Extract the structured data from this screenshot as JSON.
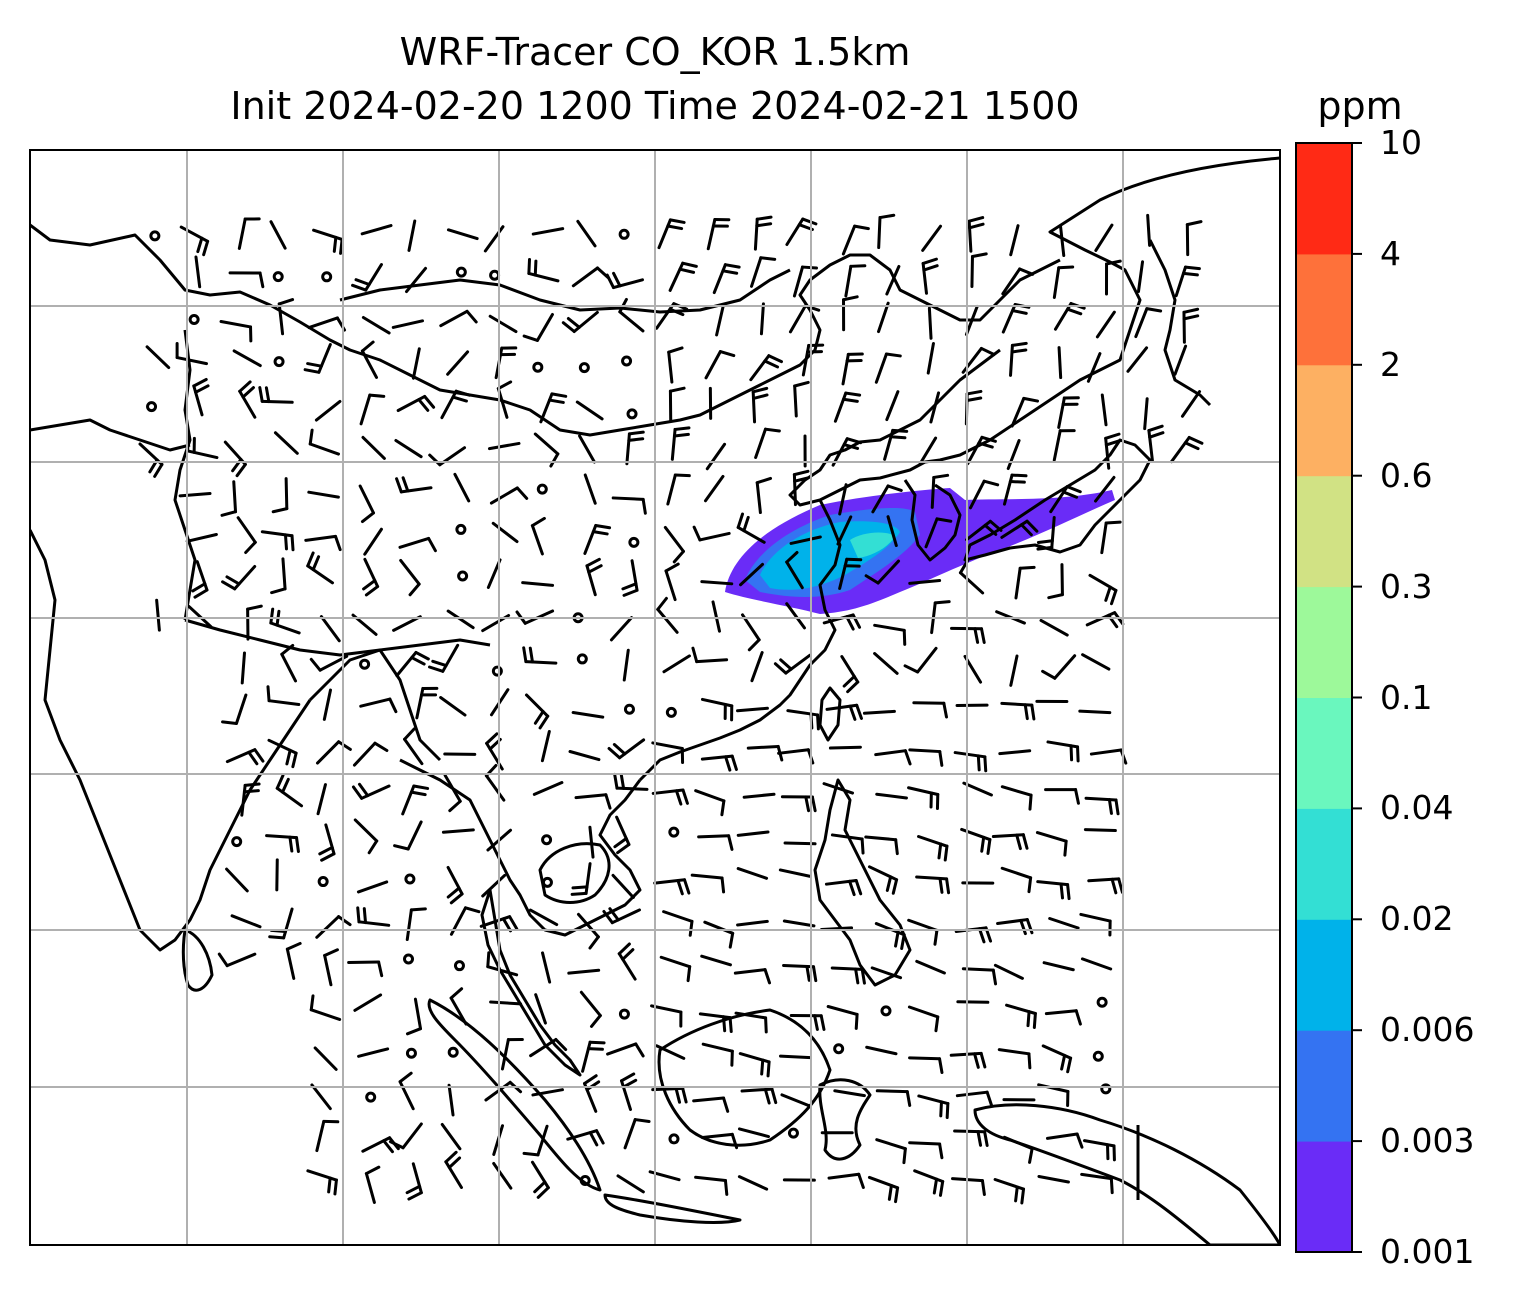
{
  "title": {
    "line1": "WRF-Tracer CO_KOR 1.5km",
    "line2": "Init 2024-02-20 1200 Time 2024-02-21 1500"
  },
  "colorbar": {
    "unit": "ppm",
    "levels": [
      "0.001",
      "0.003",
      "0.006",
      "0.02",
      "0.04",
      "0.1",
      "0.3",
      "0.6",
      "2",
      "4",
      "10"
    ],
    "colors": [
      "#6a2cf7",
      "#3473f2",
      "#00b2ea",
      "#33dfd4",
      "#6af7be",
      "#9df99a",
      "#d1e284",
      "#fdb062",
      "#fe713a",
      "#ff2a15"
    ]
  },
  "map": {
    "grid": true,
    "coastline_color": "#000000",
    "grid_color": "#b0b0b0",
    "plume_levels": [
      "0.001",
      "0.003",
      "0.006",
      "0.02"
    ],
    "wind_barbs": true
  }
}
